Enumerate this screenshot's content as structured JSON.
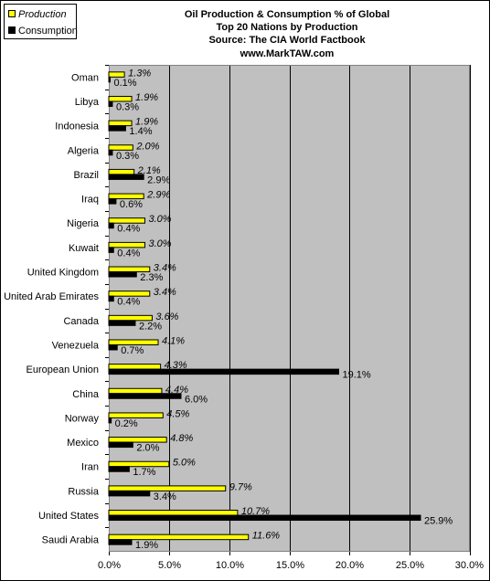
{
  "chart_data": {
    "type": "bar",
    "orientation": "horizontal",
    "title": [
      "Oil Production & Consumption % of Global",
      "Top 20 Nations by Production",
      "Source: The CIA World Factbook",
      "www.MarkTAW.com"
    ],
    "categories": [
      "Oman",
      "Libya",
      "Indonesia",
      "Algeria",
      "Brazil",
      "Iraq",
      "Nigeria",
      "Kuwait",
      "United Kingdom",
      "United Arab Emirates",
      "Canada",
      "Venezuela",
      "European Union",
      "China",
      "Norway",
      "Mexico",
      "Iran",
      "Russia",
      "United States",
      "Saudi Arabia"
    ],
    "series": [
      {
        "name": "Production",
        "color": "#ffff00",
        "values": [
          1.3,
          1.9,
          1.9,
          2.0,
          2.1,
          2.9,
          3.0,
          3.0,
          3.4,
          3.4,
          3.6,
          4.1,
          4.3,
          4.4,
          4.5,
          4.8,
          5.0,
          9.7,
          10.7,
          11.6
        ],
        "labels": [
          "1.3%",
          "1.9%",
          "1.9%",
          "2.0%",
          "2.1%",
          "2.9%",
          "3.0%",
          "3.0%",
          "3.4%",
          "3.4%",
          "3.6%",
          "4.1%",
          "4.3%",
          "4.4%",
          "4.5%",
          "4.8%",
          "5.0%",
          "9.7%",
          "10.7%",
          "11.6%"
        ]
      },
      {
        "name": "Consumption",
        "color": "#000000",
        "values": [
          0.1,
          0.3,
          1.4,
          0.3,
          2.9,
          0.6,
          0.4,
          0.4,
          2.3,
          0.4,
          2.2,
          0.7,
          19.1,
          6.0,
          0.2,
          2.0,
          1.7,
          3.4,
          25.9,
          1.9
        ],
        "labels": [
          "0.1%",
          "0.3%",
          "1.4%",
          "0.3%",
          "2.9%",
          "0.6%",
          "0.4%",
          "0.4%",
          "2.3%",
          "0.4%",
          "2.2%",
          "0.7%",
          "19.1%",
          "6.0%",
          "0.2%",
          "2.0%",
          "1.7%",
          "3.4%",
          "25.9%",
          "1.9%"
        ]
      }
    ],
    "xlim": [
      0,
      30
    ],
    "xticks": [
      0,
      5,
      10,
      15,
      20,
      25,
      30
    ],
    "xtick_labels": [
      "0.0%",
      "5.0%",
      "10.0%",
      "15.0%",
      "20.0%",
      "25.0%",
      "30.0%"
    ],
    "grid": true,
    "plot_background": "#c0c0c0",
    "legend_placement": "top-left"
  }
}
